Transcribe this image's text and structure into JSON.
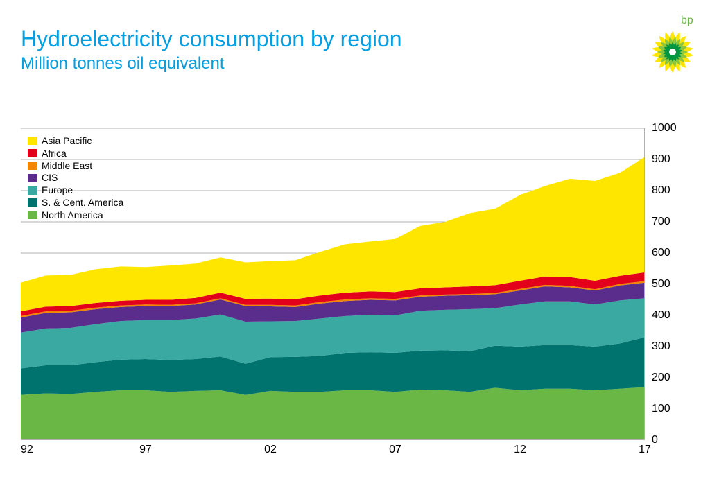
{
  "title": {
    "text": "Hydroelectricity consumption by region",
    "color": "#009fe3",
    "fontsize": 32
  },
  "subtitle": {
    "text": "Million tonnes oil equivalent",
    "color": "#009fe3",
    "fontsize": 24
  },
  "logo": {
    "label": "bp",
    "label_color": "#6bb745"
  },
  "chart": {
    "type": "stacked-area",
    "background_color": "#ffffff",
    "grid_color": "#b0b0b0",
    "x": {
      "values": [
        92,
        93,
        94,
        95,
        96,
        97,
        98,
        99,
        0,
        1,
        2,
        3,
        4,
        5,
        6,
        7,
        8,
        9,
        10,
        11,
        12,
        13,
        14,
        15,
        16,
        17
      ],
      "ticks": [
        92,
        97,
        "02",
        "07",
        12,
        17
      ]
    },
    "y": {
      "min": 0,
      "max": 1000,
      "ticks": [
        0,
        100,
        200,
        300,
        400,
        500,
        600,
        700,
        800,
        900,
        1000
      ],
      "label_fontsize": 16,
      "gridlines_at": [
        200,
        300,
        400,
        500,
        600,
        700,
        800,
        900,
        1000
      ]
    },
    "legend": {
      "position": "top-left",
      "fontsize": 14,
      "items": [
        {
          "label": "Asia Pacific",
          "color": "#ffe600"
        },
        {
          "label": "Africa",
          "color": "#e2001a"
        },
        {
          "label": "Middle East",
          "color": "#f18700"
        },
        {
          "label": "CIS",
          "color": "#5a2d8c"
        },
        {
          "label": "Europe",
          "color": "#3aa9a2"
        },
        {
          "label": "S. & Cent. America",
          "color": "#00736e"
        },
        {
          "label": "North America",
          "color": "#6bb745"
        }
      ]
    },
    "series": [
      {
        "name": "North America",
        "color": "#6bb745",
        "values": [
          145,
          150,
          148,
          155,
          160,
          160,
          155,
          158,
          160,
          145,
          158,
          155,
          155,
          160,
          160,
          155,
          162,
          160,
          155,
          168,
          160,
          165,
          165,
          160,
          165,
          170
        ]
      },
      {
        "name": "S. & Cent. America",
        "color": "#00736e",
        "values": [
          85,
          90,
          92,
          95,
          98,
          100,
          102,
          102,
          108,
          100,
          108,
          112,
          115,
          120,
          122,
          125,
          125,
          128,
          130,
          135,
          140,
          140,
          140,
          140,
          145,
          160
        ]
      },
      {
        "name": "Europe",
        "color": "#3aa9a2",
        "values": [
          115,
          118,
          120,
          122,
          124,
          125,
          128,
          130,
          135,
          135,
          115,
          115,
          120,
          118,
          120,
          120,
          128,
          130,
          135,
          120,
          135,
          140,
          140,
          135,
          138,
          125
        ]
      },
      {
        "name": "CIS",
        "color": "#5a2d8c",
        "values": [
          48,
          50,
          50,
          48,
          45,
          45,
          45,
          45,
          48,
          50,
          48,
          45,
          48,
          48,
          48,
          48,
          45,
          45,
          45,
          45,
          45,
          48,
          45,
          45,
          48,
          50
        ]
      },
      {
        "name": "Middle East",
        "color": "#f18700",
        "values": [
          5,
          5,
          5,
          5,
          5,
          5,
          4,
          4,
          4,
          4,
          5,
          5,
          5,
          5,
          5,
          5,
          4,
          4,
          4,
          4,
          5,
          5,
          5,
          4,
          5,
          5
        ]
      },
      {
        "name": "Africa",
        "color": "#e2001a",
        "values": [
          15,
          15,
          15,
          15,
          15,
          15,
          16,
          17,
          18,
          19,
          20,
          20,
          21,
          22,
          22,
          22,
          23,
          23,
          24,
          25,
          26,
          27,
          28,
          27,
          26,
          28
        ]
      },
      {
        "name": "Asia Pacific",
        "color": "#ffe600",
        "values": [
          92,
          100,
          100,
          108,
          110,
          105,
          110,
          110,
          113,
          117,
          120,
          125,
          140,
          155,
          160,
          170,
          200,
          210,
          235,
          245,
          275,
          290,
          315,
          320,
          330,
          370
        ]
      }
    ]
  }
}
